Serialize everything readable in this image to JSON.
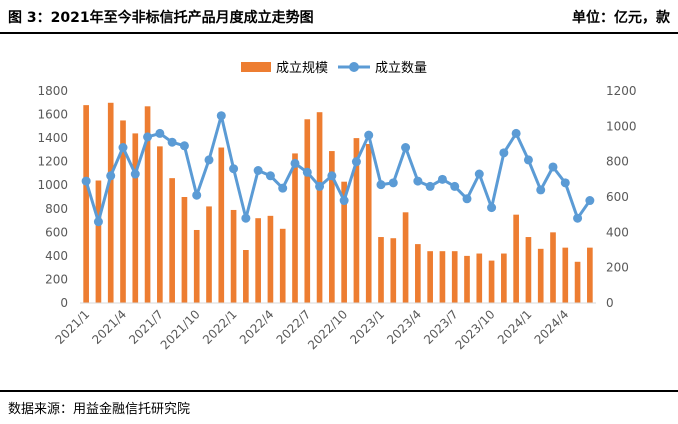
{
  "header": {
    "title": "图 3：2021年至今非标信托产品月度成立走势图",
    "unit": "单位：亿元，款"
  },
  "footer": {
    "source": "数据来源：用益金融信托研究院"
  },
  "colors": {
    "bar": "#ED7D31",
    "line": "#5B9BD5",
    "axis": "#D9D9D9",
    "text": "#595959"
  },
  "chart_data": {
    "type": "bar",
    "legend_position": "top",
    "grid": false,
    "left_axis": {
      "min": 0,
      "max": 1800,
      "step": 200,
      "ticks": [
        "0",
        "200",
        "400",
        "600",
        "800",
        "1000",
        "1200",
        "1400",
        "1600",
        "1800"
      ]
    },
    "right_axis": {
      "min": 0,
      "max": 1200,
      "step": 200,
      "ticks": [
        "0",
        "200",
        "400",
        "600",
        "800",
        "1000",
        "1200"
      ]
    },
    "x_tick_labels": [
      {
        "index": 0,
        "label": "2021/1"
      },
      {
        "index": 3,
        "label": "2021/4"
      },
      {
        "index": 6,
        "label": "2021/7"
      },
      {
        "index": 9,
        "label": "2021/10"
      },
      {
        "index": 12,
        "label": "2022/1"
      },
      {
        "index": 15,
        "label": "2022/4"
      },
      {
        "index": 18,
        "label": "2022/7"
      },
      {
        "index": 21,
        "label": "2022/10"
      },
      {
        "index": 24,
        "label": "2023/1"
      },
      {
        "index": 27,
        "label": "2023/4"
      },
      {
        "index": 30,
        "label": "2023/7"
      },
      {
        "index": 33,
        "label": "2023/10"
      },
      {
        "index": 36,
        "label": "2024/1"
      },
      {
        "index": 39,
        "label": "2024/4"
      }
    ],
    "categories": [
      "2021/1",
      "2021/2",
      "2021/3",
      "2021/4",
      "2021/5",
      "2021/6",
      "2021/7",
      "2021/8",
      "2021/9",
      "2021/10",
      "2021/11",
      "2021/12",
      "2022/1",
      "2022/2",
      "2022/3",
      "2022/4",
      "2022/5",
      "2022/6",
      "2022/7",
      "2022/8",
      "2022/9",
      "2022/10",
      "2022/11",
      "2022/12",
      "2023/1",
      "2023/2",
      "2023/3",
      "2023/4",
      "2023/5",
      "2023/6",
      "2023/7",
      "2023/8",
      "2023/9",
      "2023/10",
      "2023/11",
      "2023/12",
      "2024/1",
      "2024/2",
      "2024/3",
      "2024/4",
      "2024/5",
      "2024/6"
    ],
    "series": [
      {
        "name": "成立规模",
        "type": "bar",
        "axis": "left",
        "values": [
          1680,
          1040,
          1700,
          1550,
          1440,
          1670,
          1330,
          1060,
          900,
          620,
          820,
          1320,
          790,
          450,
          720,
          740,
          630,
          1270,
          1560,
          1620,
          1290,
          1030,
          1400,
          1350,
          560,
          550,
          770,
          500,
          440,
          440,
          440,
          400,
          420,
          360,
          420,
          750,
          560,
          460,
          600,
          470,
          350,
          470
        ]
      },
      {
        "name": "成立数量",
        "type": "line",
        "axis": "right",
        "values": [
          690,
          460,
          720,
          880,
          730,
          940,
          960,
          910,
          890,
          610,
          810,
          1060,
          760,
          480,
          750,
          720,
          650,
          790,
          740,
          660,
          720,
          580,
          800,
          950,
          670,
          680,
          880,
          690,
          660,
          700,
          660,
          590,
          730,
          540,
          850,
          960,
          810,
          640,
          770,
          680,
          480,
          580
        ]
      }
    ]
  }
}
